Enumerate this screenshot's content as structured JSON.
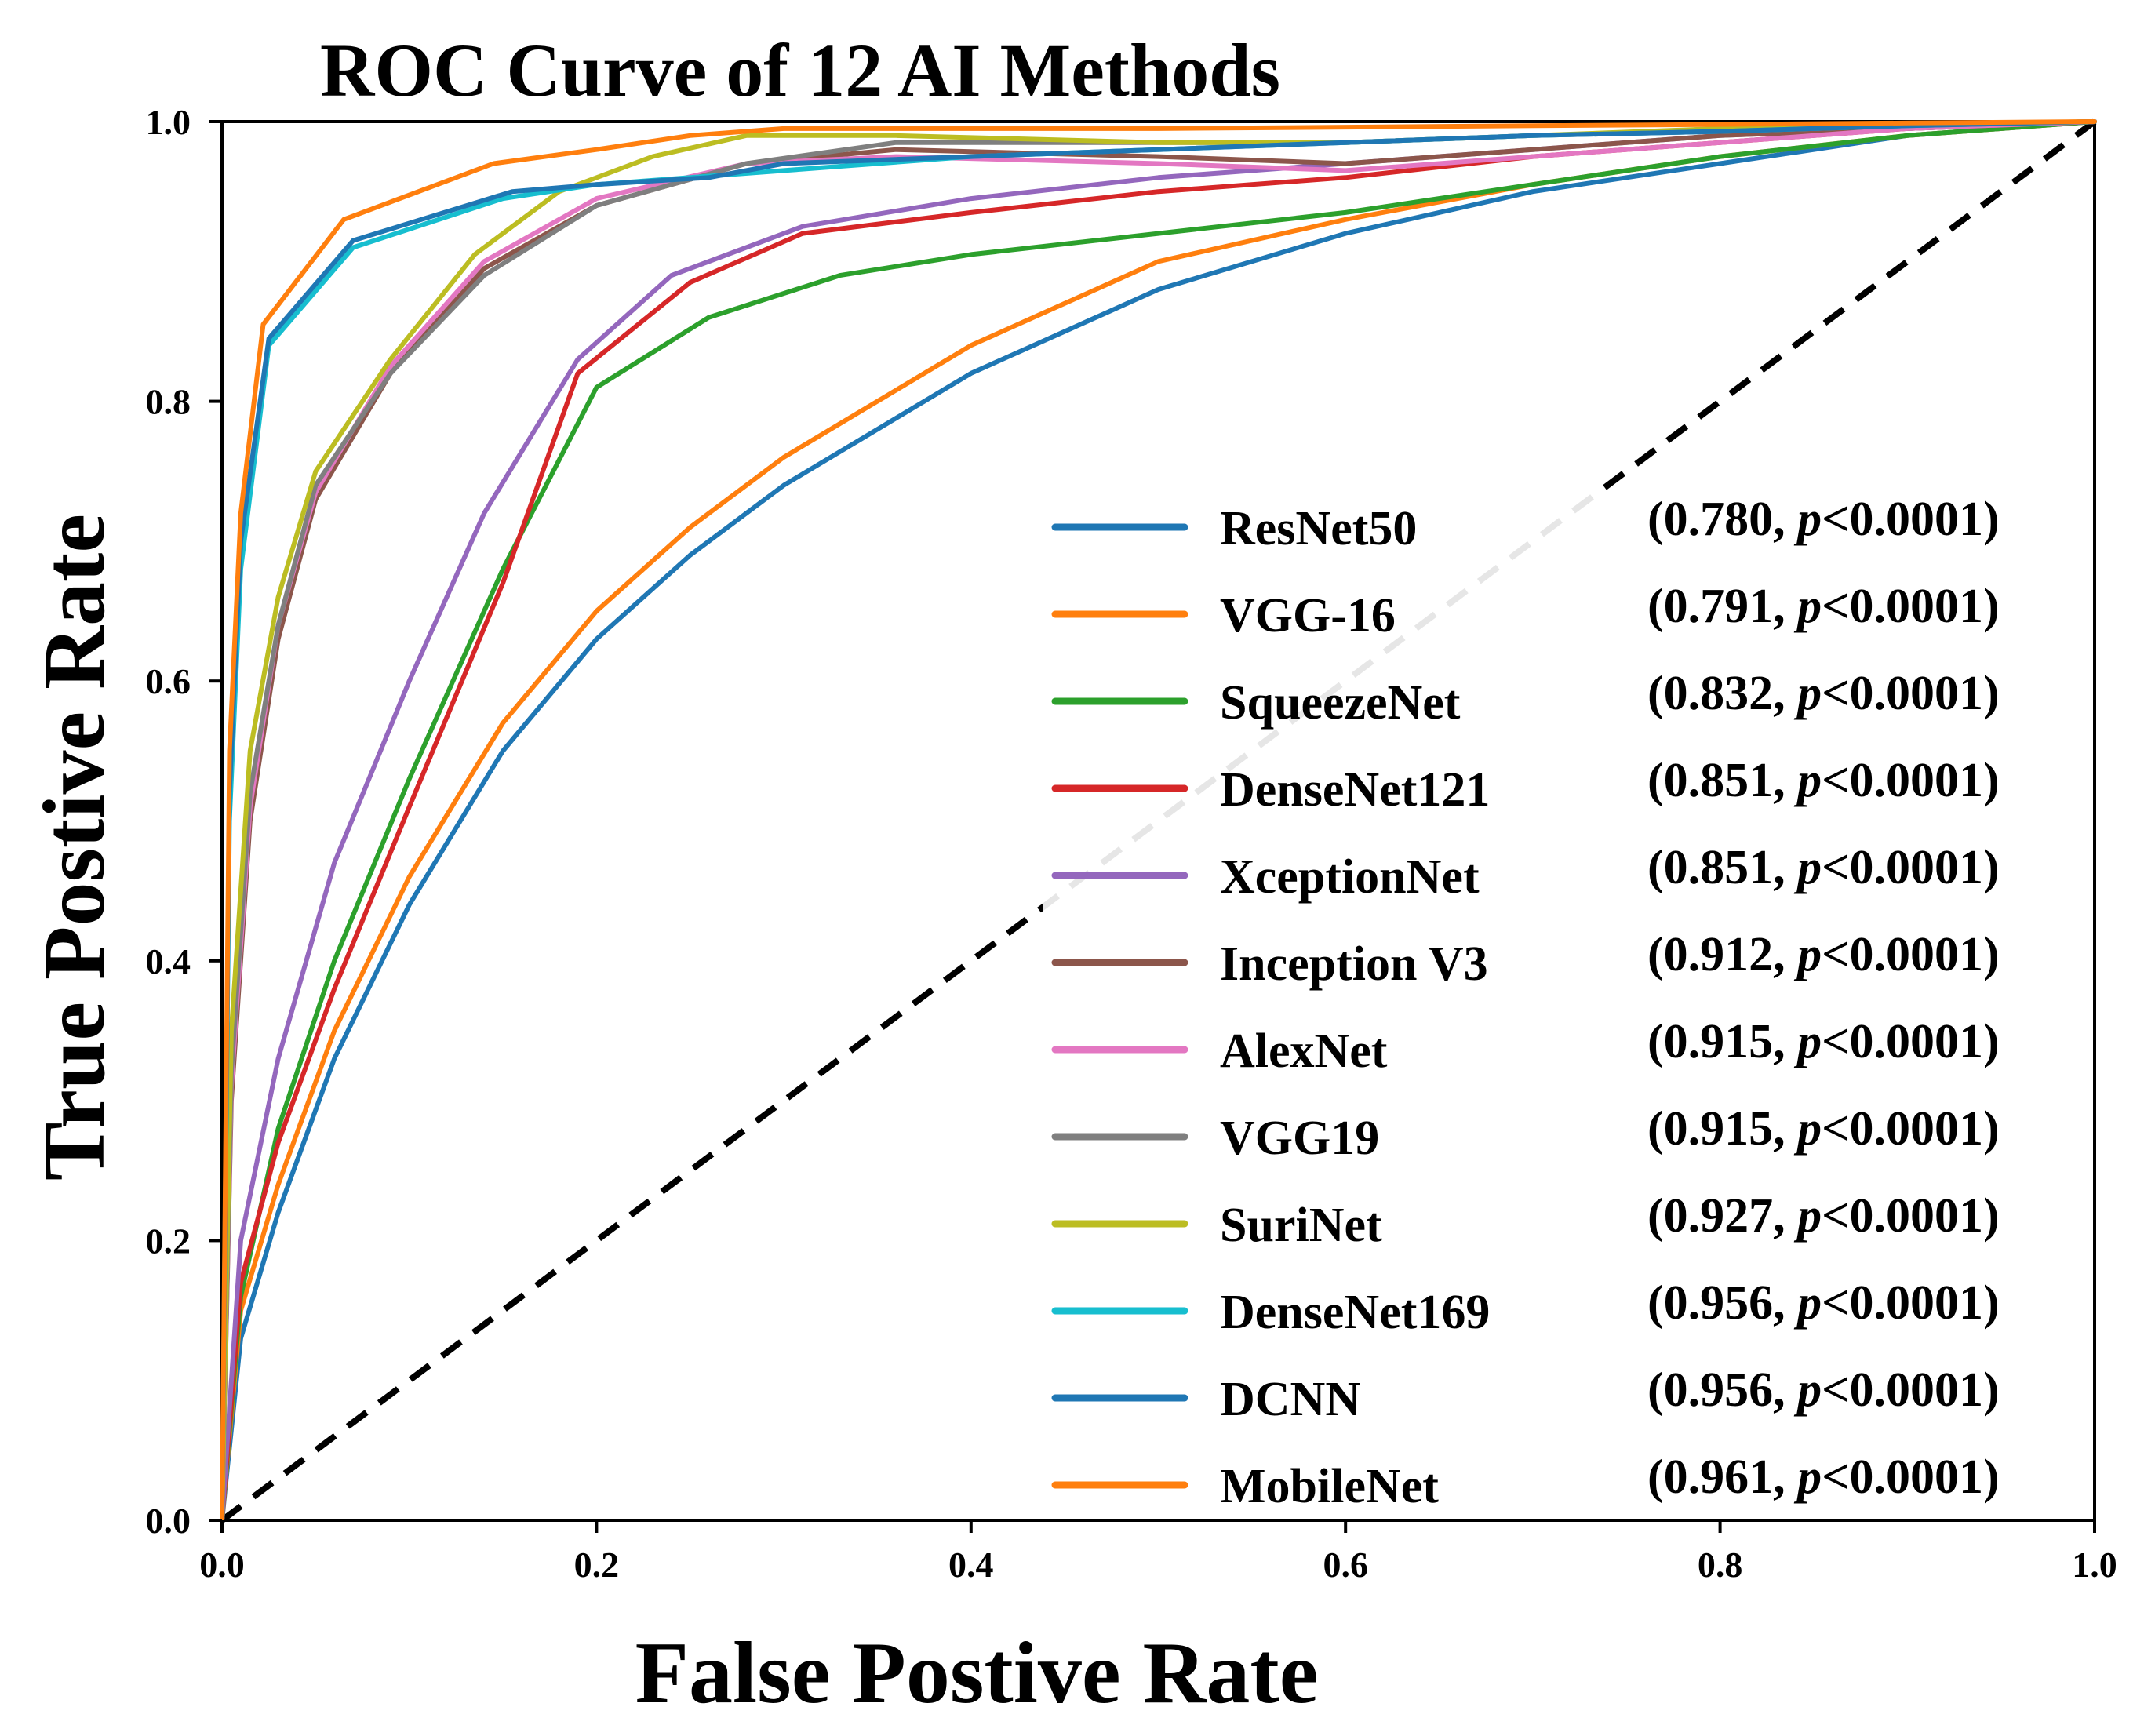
{
  "chart_data": {
    "type": "line",
    "title": "ROC Curve of 12 AI Methods",
    "xlabel": "False Postive Rate",
    "ylabel": "True Postive Rate",
    "xlim": [
      0,
      1
    ],
    "ylim": [
      0,
      1
    ],
    "x_ticks": [
      "0.0",
      "0.2",
      "0.4",
      "0.6",
      "0.8",
      "1.0"
    ],
    "y_ticks": [
      "0.0",
      "0.2",
      "0.4",
      "0.6",
      "0.8",
      "1.0"
    ],
    "grid": false,
    "legend_position": "lower-right",
    "diagonal": {
      "style": "dashed",
      "color": "#000000",
      "points": [
        [
          0,
          0
        ],
        [
          1,
          1
        ]
      ]
    },
    "series": [
      {
        "name": "ResNet50",
        "auc_label": "(0.780, ",
        "p_label": "p",
        "p_suffix": "<0.0001)",
        "color": "#1f77b4",
        "points": [
          [
            0,
            0
          ],
          [
            0.01,
            0.13
          ],
          [
            0.03,
            0.22
          ],
          [
            0.06,
            0.33
          ],
          [
            0.1,
            0.44
          ],
          [
            0.15,
            0.55
          ],
          [
            0.2,
            0.63
          ],
          [
            0.25,
            0.69
          ],
          [
            0.3,
            0.74
          ],
          [
            0.35,
            0.78
          ],
          [
            0.4,
            0.82
          ],
          [
            0.45,
            0.85
          ],
          [
            0.5,
            0.88
          ],
          [
            0.6,
            0.92
          ],
          [
            0.7,
            0.95
          ],
          [
            0.8,
            0.97
          ],
          [
            0.9,
            0.99
          ],
          [
            1,
            1
          ]
        ]
      },
      {
        "name": "VGG-16",
        "auc_label": "(0.791, ",
        "p_label": "p",
        "p_suffix": "<0.0001)",
        "color": "#ff7f0e",
        "points": [
          [
            0,
            0
          ],
          [
            0.01,
            0.15
          ],
          [
            0.03,
            0.24
          ],
          [
            0.06,
            0.35
          ],
          [
            0.1,
            0.46
          ],
          [
            0.15,
            0.57
          ],
          [
            0.2,
            0.65
          ],
          [
            0.25,
            0.71
          ],
          [
            0.3,
            0.76
          ],
          [
            0.35,
            0.8
          ],
          [
            0.4,
            0.84
          ],
          [
            0.45,
            0.87
          ],
          [
            0.5,
            0.9
          ],
          [
            0.6,
            0.93
          ],
          [
            0.7,
            0.955
          ],
          [
            0.8,
            0.975
          ],
          [
            0.9,
            0.99
          ],
          [
            1,
            1
          ]
        ]
      },
      {
        "name": "SqueezeNet",
        "auc_label": "(0.832, ",
        "p_label": "p",
        "p_suffix": "<0.0001)",
        "color": "#2ca02c",
        "points": [
          [
            0,
            0
          ],
          [
            0.01,
            0.16
          ],
          [
            0.03,
            0.28
          ],
          [
            0.06,
            0.4
          ],
          [
            0.1,
            0.53
          ],
          [
            0.15,
            0.68
          ],
          [
            0.2,
            0.81
          ],
          [
            0.26,
            0.86
          ],
          [
            0.33,
            0.89
          ],
          [
            0.4,
            0.905
          ],
          [
            0.5,
            0.92
          ],
          [
            0.6,
            0.935
          ],
          [
            0.7,
            0.955
          ],
          [
            0.8,
            0.975
          ],
          [
            0.9,
            0.99
          ],
          [
            1,
            1
          ]
        ]
      },
      {
        "name": "DenseNet121",
        "auc_label": "(0.851, ",
        "p_label": "p",
        "p_suffix": "<0.0001)",
        "color": "#d62728",
        "points": [
          [
            0,
            0
          ],
          [
            0.01,
            0.17
          ],
          [
            0.03,
            0.27
          ],
          [
            0.06,
            0.38
          ],
          [
            0.1,
            0.51
          ],
          [
            0.15,
            0.67
          ],
          [
            0.19,
            0.82
          ],
          [
            0.25,
            0.885
          ],
          [
            0.31,
            0.92
          ],
          [
            0.4,
            0.935
          ],
          [
            0.5,
            0.95
          ],
          [
            0.6,
            0.96
          ],
          [
            0.7,
            0.975
          ],
          [
            0.8,
            0.985
          ],
          [
            0.9,
            0.995
          ],
          [
            1,
            1
          ]
        ]
      },
      {
        "name": "XceptionNet",
        "auc_label": "(0.851, ",
        "p_label": "p",
        "p_suffix": "<0.0001)",
        "color": "#9467bd",
        "points": [
          [
            0,
            0
          ],
          [
            0.01,
            0.2
          ],
          [
            0.03,
            0.33
          ],
          [
            0.06,
            0.47
          ],
          [
            0.1,
            0.6
          ],
          [
            0.14,
            0.72
          ],
          [
            0.19,
            0.83
          ],
          [
            0.24,
            0.89
          ],
          [
            0.31,
            0.925
          ],
          [
            0.4,
            0.945
          ],
          [
            0.5,
            0.96
          ],
          [
            0.6,
            0.97
          ],
          [
            0.7,
            0.98
          ],
          [
            0.8,
            0.99
          ],
          [
            0.9,
            0.995
          ],
          [
            1,
            1
          ]
        ]
      },
      {
        "name": "Inception V3",
        "auc_label": "(0.912, ",
        "p_label": "p",
        "p_suffix": "<0.0001)",
        "color": "#8c564b",
        "points": [
          [
            0,
            0
          ],
          [
            0.005,
            0.3
          ],
          [
            0.015,
            0.5
          ],
          [
            0.03,
            0.63
          ],
          [
            0.05,
            0.73
          ],
          [
            0.09,
            0.82
          ],
          [
            0.14,
            0.895
          ],
          [
            0.2,
            0.94
          ],
          [
            0.28,
            0.97
          ],
          [
            0.36,
            0.98
          ],
          [
            0.5,
            0.975
          ],
          [
            0.6,
            0.97
          ],
          [
            0.7,
            0.98
          ],
          [
            0.8,
            0.99
          ],
          [
            0.9,
            0.995
          ],
          [
            1,
            1
          ]
        ]
      },
      {
        "name": "AlexNet",
        "auc_label": "(0.915, ",
        "p_label": "p",
        "p_suffix": "<0.0001)",
        "color": "#e377c2",
        "points": [
          [
            0,
            0
          ],
          [
            0.005,
            0.31
          ],
          [
            0.015,
            0.51
          ],
          [
            0.03,
            0.64
          ],
          [
            0.05,
            0.735
          ],
          [
            0.09,
            0.825
          ],
          [
            0.14,
            0.9
          ],
          [
            0.2,
            0.945
          ],
          [
            0.28,
            0.97
          ],
          [
            0.36,
            0.975
          ],
          [
            0.5,
            0.97
          ],
          [
            0.6,
            0.965
          ],
          [
            0.7,
            0.975
          ],
          [
            0.8,
            0.985
          ],
          [
            0.9,
            0.995
          ],
          [
            1,
            1
          ]
        ]
      },
      {
        "name": "VGG19",
        "auc_label": "(0.915, ",
        "p_label": "p",
        "p_suffix": "<0.0001)",
        "color": "#7f7f7f",
        "points": [
          [
            0,
            0
          ],
          [
            0.005,
            0.32
          ],
          [
            0.015,
            0.52
          ],
          [
            0.03,
            0.64
          ],
          [
            0.05,
            0.74
          ],
          [
            0.09,
            0.82
          ],
          [
            0.14,
            0.89
          ],
          [
            0.2,
            0.94
          ],
          [
            0.28,
            0.97
          ],
          [
            0.36,
            0.985
          ],
          [
            0.5,
            0.985
          ],
          [
            0.6,
            0.985
          ],
          [
            0.7,
            0.99
          ],
          [
            0.8,
            0.993
          ],
          [
            0.9,
            0.997
          ],
          [
            1,
            1
          ]
        ]
      },
      {
        "name": "SuriNet",
        "auc_label": "(0.927, ",
        "p_label": "p",
        "p_suffix": "<0.0001)",
        "color": "#bcbd22",
        "points": [
          [
            0,
            0
          ],
          [
            0.005,
            0.35
          ],
          [
            0.015,
            0.55
          ],
          [
            0.03,
            0.66
          ],
          [
            0.05,
            0.75
          ],
          [
            0.09,
            0.83
          ],
          [
            0.135,
            0.905
          ],
          [
            0.18,
            0.95
          ],
          [
            0.23,
            0.975
          ],
          [
            0.28,
            0.99
          ],
          [
            0.36,
            0.99
          ],
          [
            0.5,
            0.985
          ],
          [
            0.6,
            0.985
          ],
          [
            0.7,
            0.99
          ],
          [
            0.8,
            0.995
          ],
          [
            0.9,
            0.998
          ],
          [
            1,
            1
          ]
        ]
      },
      {
        "name": "DenseNet169",
        "auc_label": "(0.956, ",
        "p_label": "p",
        "p_suffix": "<0.0001)",
        "color": "#17becf",
        "points": [
          [
            0,
            0
          ],
          [
            0.004,
            0.5
          ],
          [
            0.01,
            0.68
          ],
          [
            0.025,
            0.84
          ],
          [
            0.07,
            0.91
          ],
          [
            0.15,
            0.945
          ],
          [
            0.2,
            0.955
          ],
          [
            0.3,
            0.965
          ],
          [
            0.4,
            0.975
          ],
          [
            0.5,
            0.98
          ],
          [
            0.6,
            0.985
          ],
          [
            0.7,
            0.99
          ],
          [
            0.8,
            0.993
          ],
          [
            0.9,
            0.997
          ],
          [
            1,
            1
          ]
        ]
      },
      {
        "name": "DCNN",
        "auc_label": "(0.956, ",
        "p_label": "p",
        "p_suffix": "<0.0001)",
        "color": "#1f77b4",
        "points": [
          [
            0,
            0
          ],
          [
            0.004,
            0.52
          ],
          [
            0.01,
            0.7
          ],
          [
            0.025,
            0.845
          ],
          [
            0.07,
            0.915
          ],
          [
            0.155,
            0.95
          ],
          [
            0.2,
            0.955
          ],
          [
            0.26,
            0.96
          ],
          [
            0.3,
            0.97
          ],
          [
            0.4,
            0.975
          ],
          [
            0.5,
            0.98
          ],
          [
            0.6,
            0.985
          ],
          [
            0.7,
            0.99
          ],
          [
            0.8,
            0.993
          ],
          [
            0.9,
            0.997
          ],
          [
            1,
            1
          ]
        ]
      },
      {
        "name": "MobileNet",
        "auc_label": "(0.961, ",
        "p_label": "p",
        "p_suffix": "<0.0001)",
        "color": "#ff7f0e",
        "points": [
          [
            0,
            0
          ],
          [
            0.004,
            0.55
          ],
          [
            0.01,
            0.72
          ],
          [
            0.022,
            0.855
          ],
          [
            0.065,
            0.93
          ],
          [
            0.145,
            0.97
          ],
          [
            0.2,
            0.98
          ],
          [
            0.25,
            0.99
          ],
          [
            0.3,
            0.995
          ],
          [
            0.4,
            0.995
          ],
          [
            0.5,
            0.995
          ],
          [
            0.6,
            0.996
          ],
          [
            0.7,
            0.997
          ],
          [
            0.8,
            0.998
          ],
          [
            0.9,
            0.999
          ],
          [
            1,
            1
          ]
        ]
      }
    ]
  }
}
